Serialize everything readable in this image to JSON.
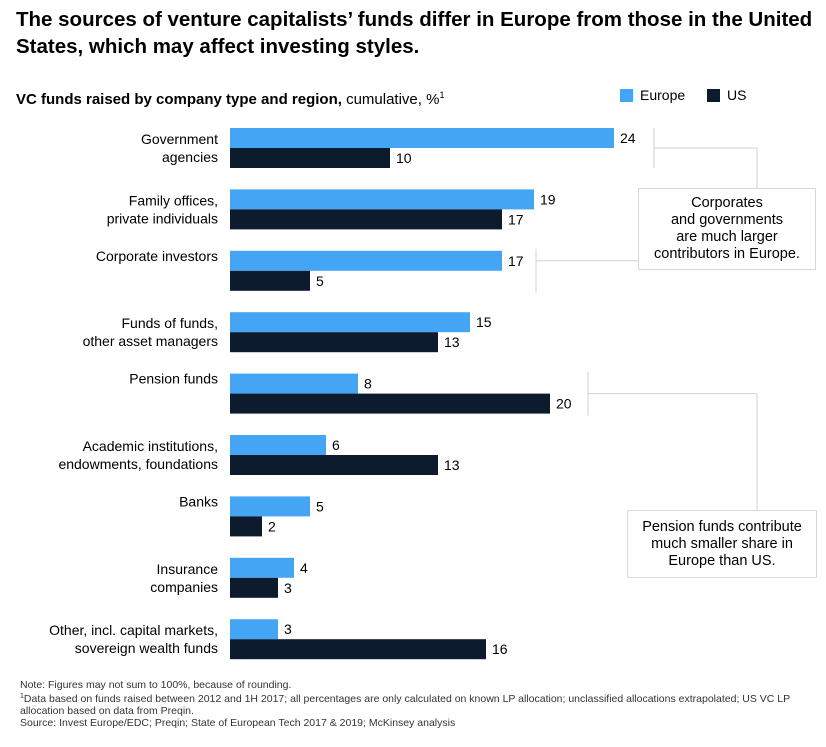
{
  "headline": "The sources of venture capitalists’ funds differ in Europe from those in the United States, which may affect investing styles.",
  "chart_data": {
    "type": "bar",
    "orientation": "horizontal",
    "title_bold": "VC funds raised by company type and region,",
    "title_rest": " cumulative, %",
    "title_footnote_mark": "1",
    "categories": [
      "Government\nagencies",
      "Family offices,\nprivate individuals",
      "Corporate investors",
      "Funds of funds,\nother asset managers",
      "Pension funds",
      "Academic institutions,\nendowments, foundations",
      "Banks",
      "Insurance\ncompanies",
      "Other, incl. capital markets,\nsovereign wealth funds"
    ],
    "series": [
      {
        "name": "Europe",
        "color": "#45A5F5",
        "values": [
          24,
          19,
          17,
          15,
          8,
          6,
          5,
          4,
          3
        ]
      },
      {
        "name": "US",
        "color": "#0D1B2E",
        "values": [
          10,
          17,
          5,
          13,
          20,
          13,
          2,
          3,
          16
        ]
      }
    ],
    "xlim": [
      0,
      24
    ],
    "grid": false,
    "legend_position": "top-right"
  },
  "callouts": [
    {
      "text": "Corporates\nand governments\nare much larger\ncontributors in Europe."
    },
    {
      "text": "Pension funds contribute\nmuch smaller share in\nEurope than US."
    }
  ],
  "footnotes": {
    "note": "Note: Figures may not sum to 100%, because of rounding.",
    "footnote_mark": "1",
    "footnote": "Data based on funds raised between 2012 and 1H 2017; all percentages are only calculated on known LP allocation; unclassified allocations extrapolated; US VC LP allocation based on data from Preqin.",
    "source": "Source: Invest Europe/EDC; Preqin; State of European Tech 2017 & 2019; McKinsey analysis"
  }
}
